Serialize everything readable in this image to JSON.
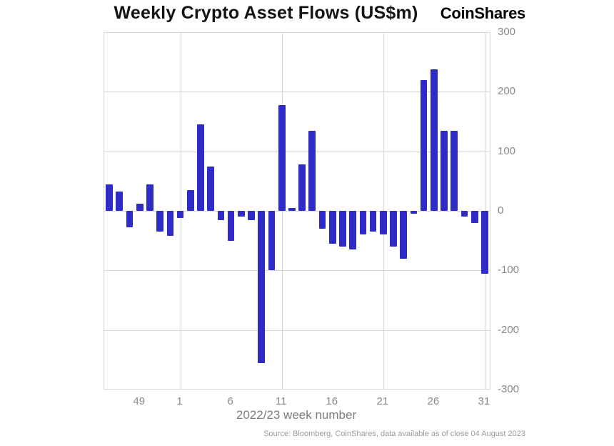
{
  "header": {
    "logo": "CoinShares"
  },
  "footer": {
    "source": "Source: Bloomberg, CoinShares, data available as of close 04 August 2023"
  },
  "chart_data": {
    "type": "bar",
    "title": "Weekly Crypto Asset Flows (US$m)",
    "xlabel": "2022/23 week number",
    "ylabel": "",
    "ylim": [
      -300,
      300
    ],
    "yticks": [
      300,
      200,
      100,
      0,
      -100,
      -200,
      -300
    ],
    "weeks": [
      "46",
      "47",
      "48",
      "49",
      "50",
      "51",
      "52",
      "1",
      "2",
      "3",
      "4",
      "5",
      "6",
      "7",
      "8",
      "9",
      "10",
      "11",
      "12",
      "13",
      "14",
      "15",
      "16",
      "17",
      "18",
      "19",
      "20",
      "21",
      "22",
      "23",
      "24",
      "25",
      "26",
      "27",
      "28",
      "29",
      "30",
      "31"
    ],
    "values": [
      45,
      33,
      -28,
      12,
      45,
      -35,
      -42,
      -12,
      35,
      145,
      75,
      -15,
      -50,
      -10,
      -15,
      -255,
      -100,
      178,
      5,
      78,
      135,
      -30,
      -55,
      -60,
      -65,
      -40,
      -35,
      -40,
      -60,
      -80,
      -5,
      220,
      238,
      135,
      135,
      -10,
      -20,
      -105
    ],
    "xticks": [
      "49",
      "1",
      "6",
      "11",
      "16",
      "21",
      "26",
      "31"
    ],
    "x_gridline_weeks": [
      "1",
      "11",
      "21",
      "31"
    ],
    "bar_color": "#2e2bc7",
    "grid": true,
    "legend": false
  }
}
